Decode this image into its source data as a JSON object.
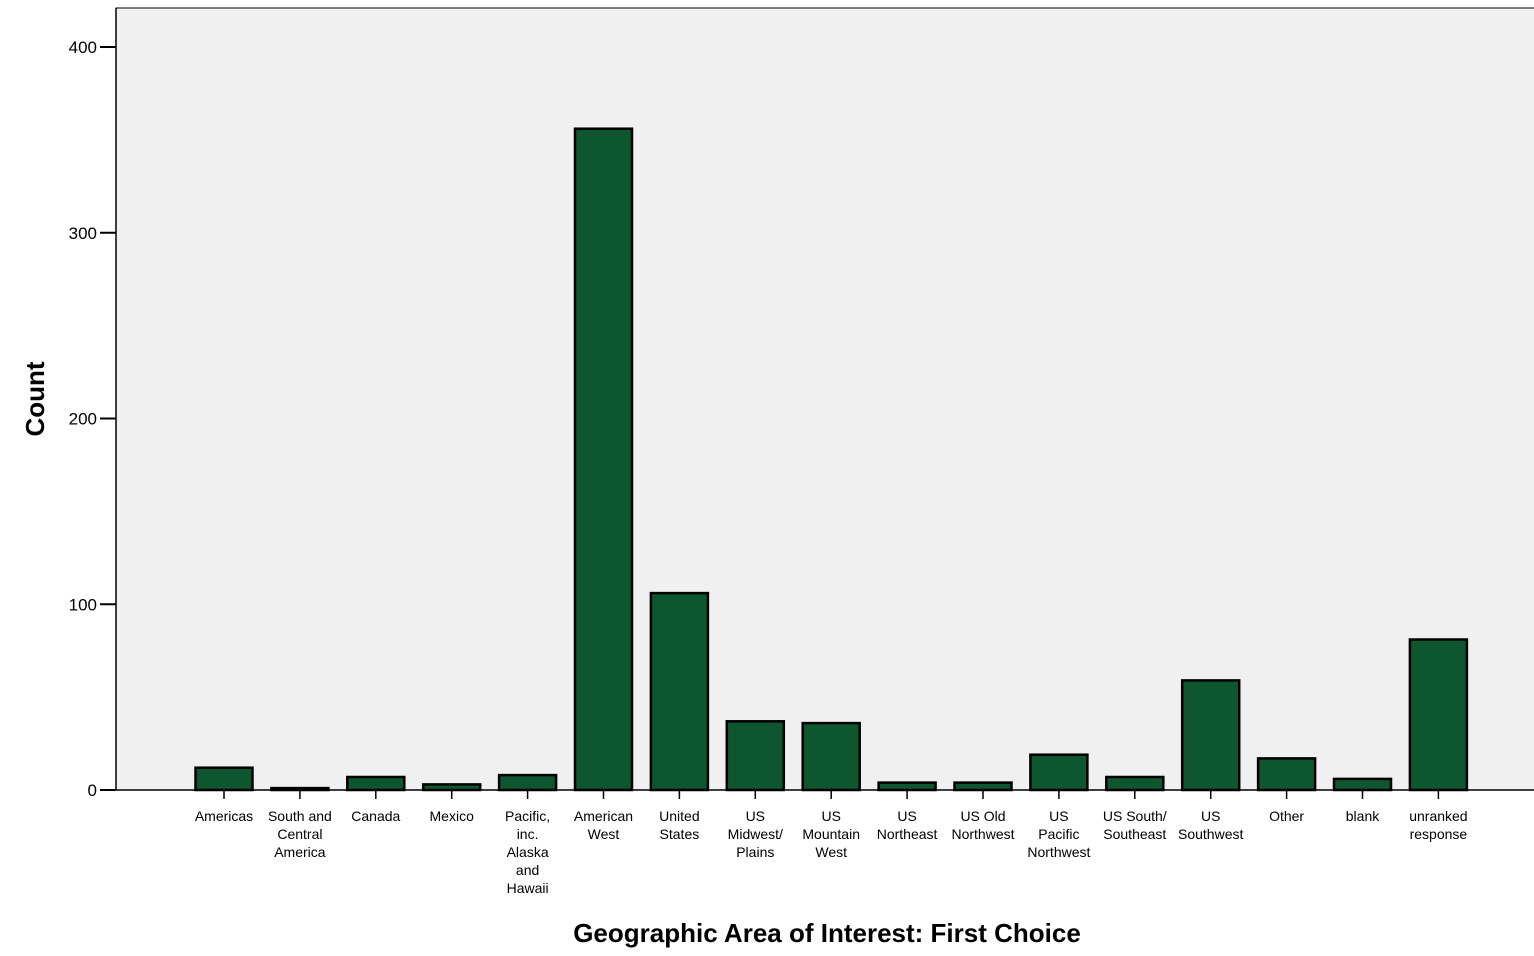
{
  "chart_data": {
    "type": "bar",
    "title": "",
    "xlabel": "Geographic Area of Interest: First Choice",
    "ylabel": "Count",
    "ylim": [
      0,
      421
    ],
    "yticks": [
      0,
      100,
      200,
      300,
      400
    ],
    "grid": false,
    "categories": [
      "Americas",
      "South and Central America",
      "Canada",
      "Mexico",
      "Pacific, inc. Alaska and Hawaii",
      "American West",
      "United States",
      "US Midwest/ Plains",
      "US Mountain West",
      "US Northeast",
      "US Old Northwest",
      "US Pacific Northwest",
      "US South/ Southeast",
      "US Southwest",
      "Other",
      "blank",
      "unranked response"
    ],
    "category_lines": [
      [
        "Americas"
      ],
      [
        "South and",
        "Central",
        "America"
      ],
      [
        "Canada"
      ],
      [
        "Mexico"
      ],
      [
        "Pacific,",
        "inc.",
        "Alaska",
        "and",
        "Hawaii"
      ],
      [
        "American",
        "West"
      ],
      [
        "United",
        "States"
      ],
      [
        "US",
        "Midwest/",
        "Plains"
      ],
      [
        "US",
        "Mountain",
        "West"
      ],
      [
        "US",
        "Northeast"
      ],
      [
        "US Old",
        "Northwest"
      ],
      [
        "US",
        "Pacific",
        "Northwest"
      ],
      [
        "US South/",
        "Southeast"
      ],
      [
        "US",
        "Southwest"
      ],
      [
        "Other"
      ],
      [
        "blank"
      ],
      [
        "unranked",
        "response"
      ]
    ],
    "values": [
      12,
      1,
      7,
      3,
      8,
      356,
      106,
      37,
      36,
      4,
      4,
      19,
      7,
      59,
      17,
      6,
      81
    ],
    "colors": {
      "bar": "#0d5630",
      "bar_stroke": "#000000",
      "plot_background": "#f0f0f0",
      "axis": "#000000"
    }
  }
}
